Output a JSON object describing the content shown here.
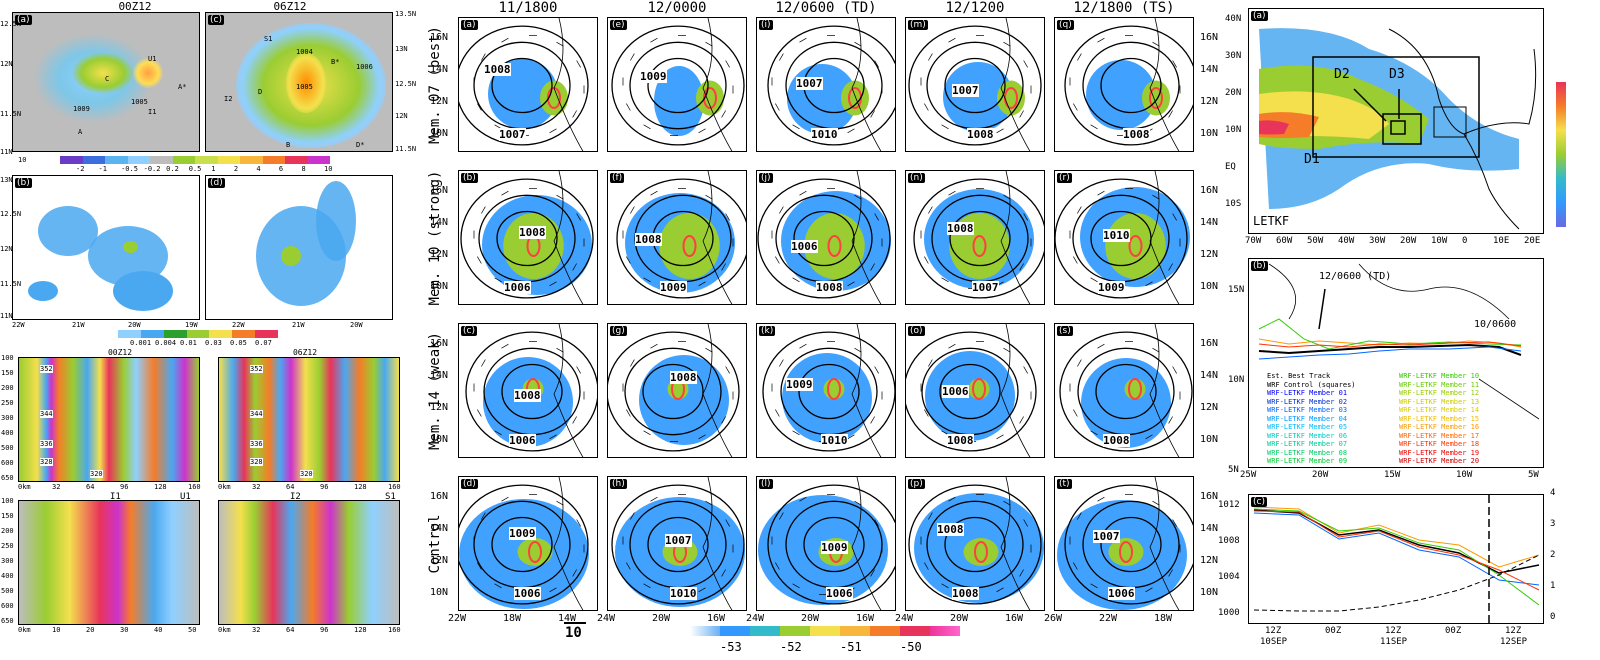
{
  "left": {
    "top_titles": [
      "00Z12",
      "06Z12"
    ],
    "panel_letters": [
      "(a)",
      "(c)",
      "(b)",
      "(d)"
    ],
    "colorbar1_ticks": [
      "-2",
      "-1",
      "-0.5",
      "-0.2",
      "0.2",
      "0.5",
      "1",
      "2",
      "4",
      "6",
      "8",
      "10"
    ],
    "colorbar2_ticks": [
      "0.001",
      "0.004",
      "0.01",
      "0.03",
      "0.05",
      "0.07"
    ],
    "vector_ref": "10",
    "lat_left_a": [
      "12.5N",
      "12N",
      "11.5N",
      "11N"
    ],
    "lat_left_b": [
      "13N",
      "12.5N",
      "12N",
      "11.5N",
      "11N"
    ],
    "lat_right": [
      "13.5N",
      "13N",
      "12.5N",
      "12N",
      "11.5N"
    ],
    "lon_b": [
      "22W",
      "21W",
      "20W",
      "19W"
    ],
    "lon_d": [
      "22W",
      "21W",
      "20W"
    ],
    "point_labels_a": [
      "U1",
      "A*",
      "C",
      "I1",
      "A",
      "1009",
      "1005"
    ],
    "point_labels_c": [
      "S1",
      "B*",
      "I2",
      "D",
      "B",
      "D*",
      "1006",
      "1004",
      "1005"
    ],
    "cs_titles": [
      "00Z12",
      "06Z12"
    ],
    "cs_pressure": [
      "100",
      "150",
      "200",
      "250",
      "300",
      "400",
      "500",
      "600",
      "650"
    ],
    "cs_x1": [
      "0km",
      "32",
      "64",
      "96",
      "128",
      "160"
    ],
    "cs_x2": [
      "0km",
      "10",
      "20",
      "30",
      "40",
      "50"
    ],
    "cs_theta": [
      "352",
      "344",
      "336",
      "328",
      "320"
    ],
    "cs_section_labels": [
      "I1",
      "U1",
      "I2",
      "S1"
    ]
  },
  "middle": {
    "columns": [
      "11/1800",
      "12/0000",
      "12/0600 (TD)",
      "12/1200",
      "12/1800 (TS)"
    ],
    "rows": [
      "Mem. 07 (best)",
      "Mem. 10 (strong)",
      "Mem. 14 (weak)",
      "Control"
    ],
    "panel_letters": [
      [
        "(a)",
        "(e)",
        "(i)",
        "(m)",
        "(q)"
      ],
      [
        "(b)",
        "(f)",
        "(j)",
        "(n)",
        "(r)"
      ],
      [
        "(c)",
        "(g)",
        "(k)",
        "(o)",
        "(s)"
      ],
      [
        "(d)",
        "(h)",
        "(l)",
        "(p)",
        "(t)"
      ]
    ],
    "lat_ticks": [
      "16N",
      "14N",
      "12N",
      "10N"
    ],
    "lon_ticks": [
      [
        "22W",
        "18W",
        "14W"
      ],
      [
        "24W",
        "20W",
        "16W"
      ],
      [
        "24W",
        "20W",
        "16W"
      ],
      [
        "24W",
        "20W",
        "16W"
      ],
      [
        "26W",
        "22W",
        "18W"
      ]
    ],
    "pressure_labels": [
      [
        "1007",
        "1008",
        "",
        "1009",
        "1010",
        "1007",
        "1008"
      ],
      [
        "1006",
        "1008",
        "1009",
        "1008",
        "1008",
        "1006",
        "1007",
        "1008",
        "1009",
        "1010",
        "1008",
        "1006",
        "1007"
      ],
      [
        "1006",
        "1008",
        "",
        "1008",
        "1010",
        "1009",
        "1008"
      ],
      [
        "1006",
        "1009",
        "1010",
        "1007",
        "1006",
        "1009",
        "1008",
        "1008",
        "1006",
        "1007"
      ]
    ],
    "vector_ref": "10",
    "colorbar_ticks": [
      "-53",
      "-52",
      "-51",
      "-50"
    ],
    "colors": {
      "cold": "#1e90ff",
      "mid": "#9acd32",
      "warm": "#ff4040"
    }
  },
  "right": {
    "a": {
      "label": "(a)",
      "domains": [
        "D1",
        "D2",
        "D3"
      ],
      "footer": "LETKF",
      "lat": [
        "40N",
        "30N",
        "20N",
        "10N",
        "EQ",
        "10S"
      ],
      "lon": [
        "70W",
        "60W",
        "50W",
        "40W",
        "30W",
        "20W",
        "10W",
        "0",
        "10E",
        "20E"
      ]
    },
    "b": {
      "label": "(b)",
      "ann1": "12/0600 (TD)",
      "ann2": "10/0600",
      "lat": [
        "15N",
        "10N",
        "5N"
      ],
      "lon": [
        "25W",
        "20W",
        "15W",
        "10W",
        "5W"
      ],
      "legend_left": [
        {
          "t": "Est. Best Track",
          "c": "#000000"
        },
        {
          "t": "WRF Control (squares)",
          "c": "#000000"
        },
        {
          "t": "WRF-LETKF Member 01",
          "c": "#0000ff"
        },
        {
          "t": "WRF-LETKF Member 02",
          "c": "#0033cc"
        },
        {
          "t": "WRF-LETKF Member 03",
          "c": "#0066ff"
        },
        {
          "t": "WRF-LETKF Member 04",
          "c": "#0099ff"
        },
        {
          "t": "WRF-LETKF Member 05",
          "c": "#00bbff"
        },
        {
          "t": "WRF-LETKF Member 06",
          "c": "#00cccc"
        },
        {
          "t": "WRF-LETKF Member 07",
          "c": "#00cc99"
        },
        {
          "t": "WRF-LETKF Member 08",
          "c": "#00cc66"
        },
        {
          "t": "WRF-LETKF Member 09",
          "c": "#00cc33"
        }
      ],
      "legend_right": [
        {
          "t": "WRF-LETKF Member 10",
          "c": "#33cc00"
        },
        {
          "t": "WRF-LETKF Member 11",
          "c": "#66cc00"
        },
        {
          "t": "WRF-LETKF Member 12",
          "c": "#99cc00"
        },
        {
          "t": "WRF-LETKF Member 13",
          "c": "#cccc00"
        },
        {
          "t": "WRF-LETKF Member 14",
          "c": "#ddcc00"
        },
        {
          "t": "WRF-LETKF Member 15",
          "c": "#eebb00"
        },
        {
          "t": "WRF-LETKF Member 16",
          "c": "#ff9900"
        },
        {
          "t": "WRF-LETKF Member 17",
          "c": "#ff6600"
        },
        {
          "t": "WRF-LETKF Member 18",
          "c": "#ff3300"
        },
        {
          "t": "WRF-LETKF Member 19",
          "c": "#ee0000"
        },
        {
          "t": "WRF-LETKF Member 20",
          "c": "#cc0000"
        }
      ]
    },
    "c": {
      "label": "(c)",
      "y_left": [
        "1012",
        "1008",
        "1004",
        "1000"
      ],
      "y_right": [
        "4",
        "3",
        "2",
        "1",
        "0"
      ],
      "x_ticks": [
        "12Z",
        "00Z",
        "12Z",
        "00Z",
        "12Z"
      ],
      "x_dates": [
        "10SEP",
        "11SEP",
        "12SEP"
      ]
    }
  }
}
